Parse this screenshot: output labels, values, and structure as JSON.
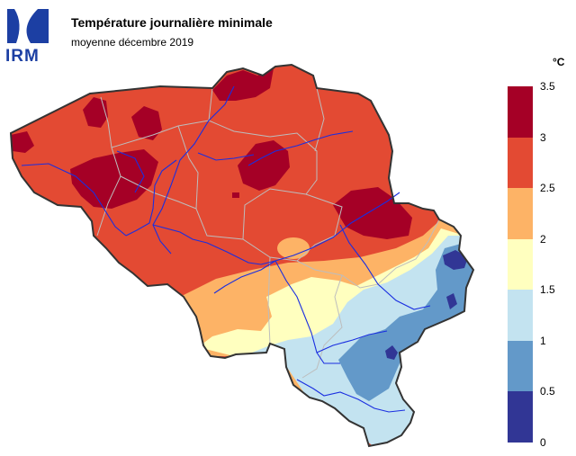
{
  "header": {
    "logo_text": "IRM",
    "title": "Température journalière minimale",
    "subtitle": "moyenne décembre 2019"
  },
  "legend": {
    "unit": "°C",
    "bins": [
      {
        "from": 3.0,
        "to": 3.5,
        "color": "#a50026"
      },
      {
        "from": 2.5,
        "to": 3.0,
        "color": "#e34a33"
      },
      {
        "from": 2.0,
        "to": 2.5,
        "color": "#fdb366"
      },
      {
        "from": 1.5,
        "to": 2.0,
        "color": "#ffffbf"
      },
      {
        "from": 1.0,
        "to": 1.5,
        "color": "#c3e3f0"
      },
      {
        "from": 0.5,
        "to": 1.0,
        "color": "#6399c9"
      },
      {
        "from": 0.0,
        "to": 0.5,
        "color": "#313695"
      }
    ],
    "ticks": [
      "3.5",
      "3",
      "2.5",
      "2",
      "1.5",
      "1",
      "0.5",
      "0"
    ]
  },
  "map": {
    "region": "Belgium",
    "river_color": "#1a2ee0",
    "border_color": "#bdbdbd",
    "outline_color": "#333333"
  }
}
